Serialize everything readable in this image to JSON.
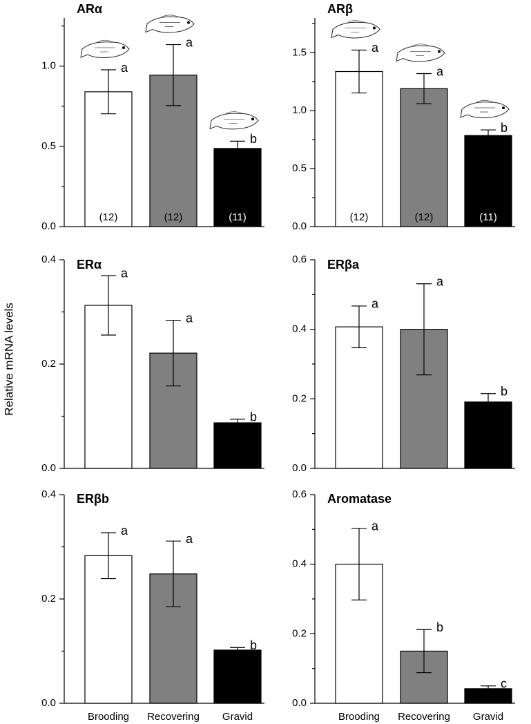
{
  "ylabel": "Relative mRNA levels",
  "chart_data": [
    {
      "type": "bar",
      "title": "ARα",
      "values": [
        0.84,
        0.944,
        0.487
      ],
      "errors": [
        0.137,
        0.19,
        0.045
      ],
      "letters": [
        "a",
        "a",
        "b"
      ],
      "n_labels": [
        "(12)",
        "(12)",
        "(11)"
      ],
      "colors": [
        "#ffffff",
        "#808080",
        "#000000"
      ],
      "ylim": [
        0,
        1.3
      ],
      "yticks": [
        {
          "value": 0,
          "label": "0.0"
        },
        {
          "value": 0.5,
          "label": "0.5"
        },
        {
          "value": 1,
          "label": "1.0"
        }
      ],
      "minor_yticks": [
        0.25,
        0.75,
        1.25
      ]
    },
    {
      "type": "bar",
      "title": "ARβ",
      "values": [
        1.338,
        1.19,
        0.786
      ],
      "errors": [
        0.185,
        0.13,
        0.048
      ],
      "letters": [
        "a",
        "a",
        "b"
      ],
      "n_labels": [
        "(12)",
        "(12)",
        "(11)"
      ],
      "colors": [
        "#ffffff",
        "#808080",
        "#000000"
      ],
      "ylim": [
        0,
        1.8
      ],
      "yticks": [
        {
          "value": 0,
          "label": "0.0"
        },
        {
          "value": 0.5,
          "label": "0.5"
        },
        {
          "value": 1,
          "label": "1.0"
        },
        {
          "value": 1.5,
          "label": "1.5"
        }
      ],
      "minor_yticks": [
        0.25,
        0.75,
        1.25,
        1.75
      ]
    },
    {
      "type": "bar",
      "title": "ERα",
      "values": [
        0.3126,
        0.221,
        0.0874
      ],
      "errors": [
        0.057,
        0.063,
        0.007
      ],
      "letters": [
        "a",
        "a",
        "b"
      ],
      "colors": [
        "#ffffff",
        "#808080",
        "#000000"
      ],
      "ylim": [
        0,
        0.4
      ],
      "yticks": [
        {
          "value": 0,
          "label": "0.0"
        },
        {
          "value": 0.2,
          "label": "0.2"
        },
        0.4
      ],
      "minor_yticks": [
        0.1,
        0.3
      ]
    },
    {
      "type": "bar",
      "title": "ERβa",
      "values": [
        0.407,
        0.4,
        0.191
      ],
      "errors": [
        0.06,
        0.131,
        0.024
      ],
      "letters": [
        "a",
        "a",
        "b"
      ],
      "colors": [
        "#ffffff",
        "#808080",
        "#000000"
      ],
      "ylim": [
        0,
        0.6
      ],
      "yticks": [
        {
          "value": 0,
          "label": "0.0"
        },
        {
          "value": 0.2,
          "label": "0.2"
        },
        0.4,
        0.6
      ],
      "minor_yticks": [
        0.1,
        0.3,
        0.5
      ]
    },
    {
      "type": "bar",
      "title": "ERβb",
      "categories": [
        "Brooding",
        "Recovering",
        "Gravid"
      ],
      "values": [
        0.283,
        0.248,
        0.102
      ],
      "errors": [
        0.044,
        0.063,
        0.005
      ],
      "letters": [
        "a",
        "a",
        "b"
      ],
      "colors": [
        "#ffffff",
        "#808080",
        "#000000"
      ],
      "ylim": [
        0,
        0.4
      ],
      "yticks": [
        {
          "value": 0,
          "label": "0.0"
        },
        {
          "value": 0.2,
          "label": "0.2"
        },
        0.4
      ],
      "minor_yticks": [
        0.1,
        0.3
      ]
    },
    {
      "type": "bar",
      "title": "Aromatase",
      "categories": [
        "Brooding",
        "Recovering",
        "Gravid"
      ],
      "values": [
        0.4,
        0.15,
        0.042
      ],
      "errors": [
        0.103,
        0.062,
        0.008
      ],
      "letters": [
        "a",
        "b",
        "c"
      ],
      "colors": [
        "#ffffff",
        "#808080",
        "#000000"
      ],
      "ylim": [
        0,
        0.6
      ],
      "yticks": [
        {
          "value": 0,
          "label": "0.0"
        },
        {
          "value": 0.2,
          "label": "0.2"
        },
        0.4,
        0.6
      ],
      "minor_yticks": [
        0.1,
        0.3,
        0.5
      ]
    }
  ]
}
